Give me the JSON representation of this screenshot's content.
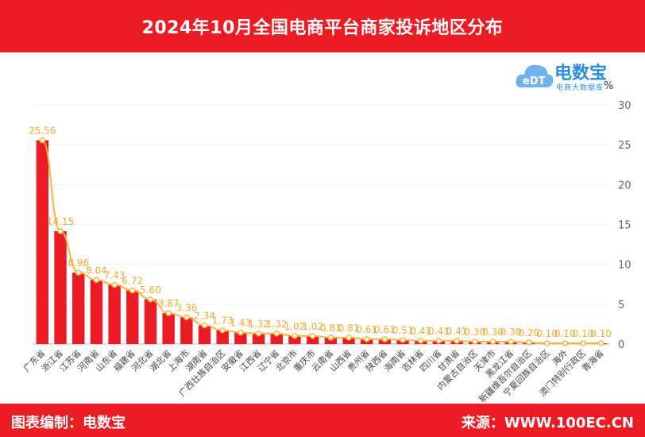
{
  "header": {
    "title": "2024年10月全国电商平台商家投诉地区分布"
  },
  "footer": {
    "left": "图表编制：电数宝",
    "right": "来源：WWW.100EC.CN"
  },
  "logo": {
    "brand": "电数宝",
    "sub": "电商大数据库",
    "mark": "eDT"
  },
  "colors": {
    "bar": "#ec1c24",
    "line": "#f7b53b",
    "label": "#f0a830",
    "axis": "#666666"
  },
  "chart_data": {
    "type": "bar",
    "title": "2024年10月全国电商平台商家投诉地区分布",
    "ylabel": "%",
    "ylim": [
      0,
      30
    ],
    "yticks": [
      0,
      5,
      10,
      15,
      20,
      25,
      30
    ],
    "grid": true,
    "categories": [
      "广东省",
      "浙江省",
      "江苏省",
      "河南省",
      "山东省",
      "福建省",
      "河北省",
      "湖北省",
      "上海市",
      "湖南省",
      "广西壮族自治区",
      "安徽省",
      "江西省",
      "辽宁省",
      "北京市",
      "重庆市",
      "云南省",
      "山西省",
      "贵州省",
      "陕西省",
      "海南省",
      "吉林省",
      "四川省",
      "甘肃省",
      "内蒙古自治区",
      "天津市",
      "黑龙江省",
      "新疆维吾尔自治区",
      "宁夏回族自治区",
      "海外",
      "澳门特别行政区",
      "青海省"
    ],
    "values": [
      25.56,
      14.15,
      8.96,
      8.04,
      7.43,
      6.72,
      5.6,
      3.87,
      3.36,
      2.34,
      1.73,
      1.43,
      1.32,
      1.32,
      1.02,
      1.02,
      0.81,
      0.81,
      0.61,
      0.61,
      0.51,
      0.41,
      0.41,
      0.41,
      0.3,
      0.3,
      0.3,
      0.2,
      0.1,
      0.1,
      0.1,
      0.1
    ],
    "value_labels": [
      "25.56",
      "14.15",
      "8.96",
      "8.04",
      "7.43",
      "6.72",
      "5.60",
      "3.87",
      "3.36",
      "2.34",
      "1.73",
      "1.43",
      "1.32",
      "1.32",
      "1.02",
      "1.02",
      "0.81",
      "0.81",
      "0.61",
      "0.61",
      "0.51",
      "0.41",
      "0.41",
      "0.41",
      "0.30",
      "0.30",
      "0.30",
      "0.20",
      "0.10",
      "0.10",
      "0.10",
      "0.10"
    ]
  }
}
